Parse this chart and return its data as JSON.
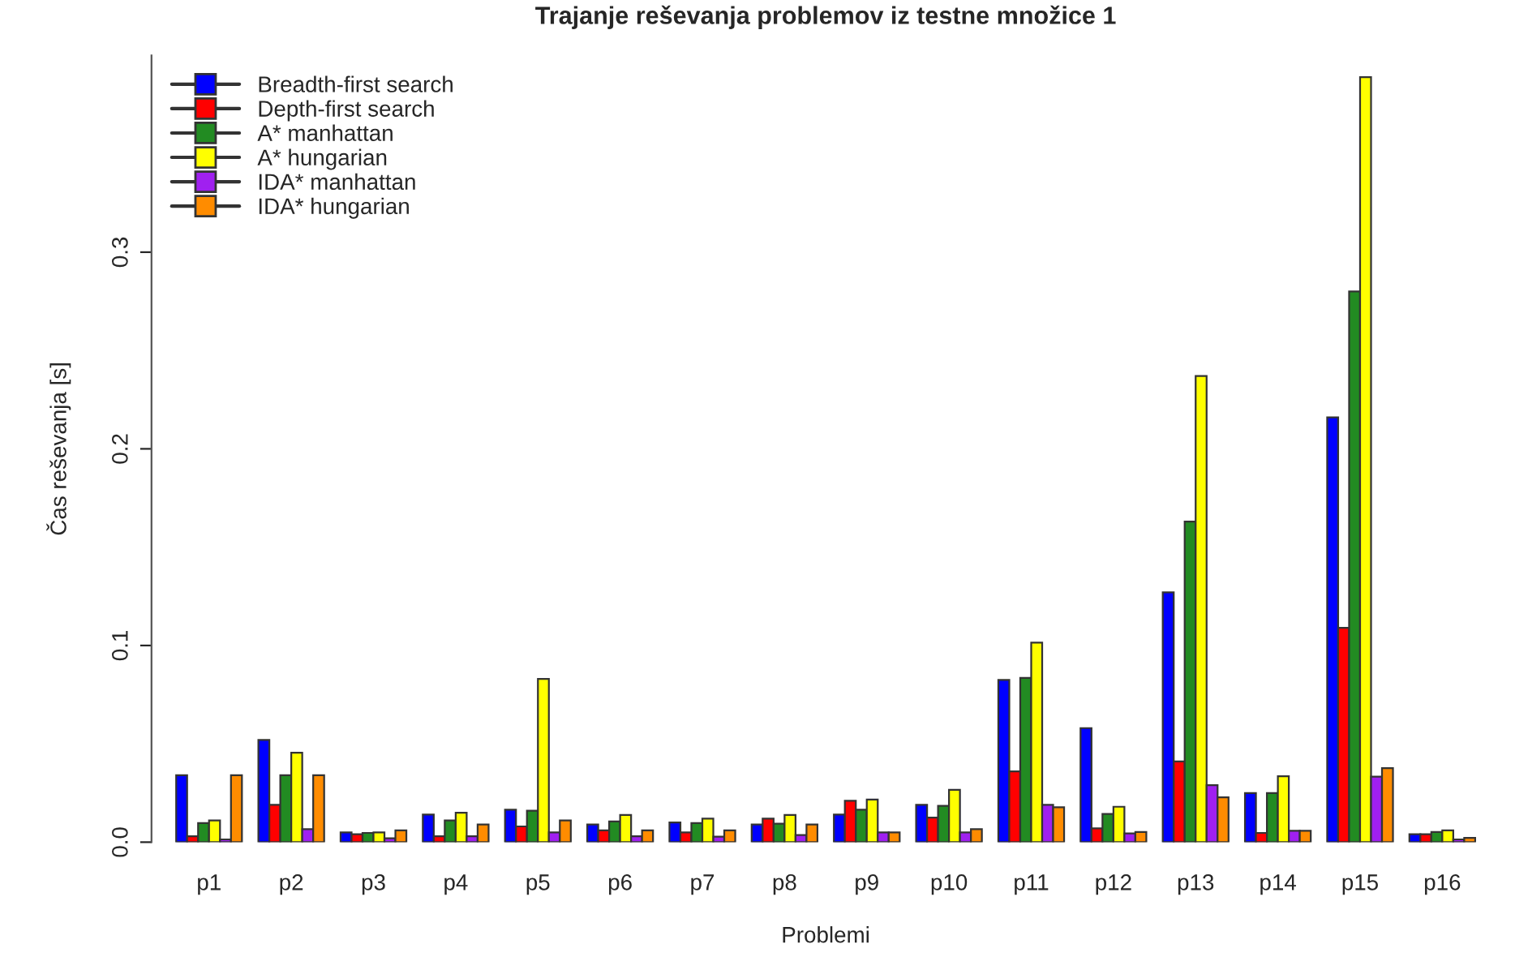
{
  "chart_data": {
    "type": "bar",
    "title": "Trajanje reševanja problemov iz testne množice 1",
    "xlabel": "Problemi",
    "ylabel": "Čas reševanja [s]",
    "categories": [
      "p1",
      "p2",
      "p3",
      "p4",
      "p5",
      "p6",
      "p7",
      "p8",
      "p9",
      "p10",
      "p11",
      "p12",
      "p13",
      "p14",
      "p15",
      "p16"
    ],
    "ylim": [
      0,
      0.4
    ],
    "yticks": [
      {
        "value": 0,
        "label": "0.0"
      },
      0.1,
      0.2,
      0.3
    ],
    "grid": false,
    "legend": "top left",
    "series": [
      {
        "name": "Breadth-first search",
        "color": "#0000ff",
        "values": [
          0.034,
          0.052,
          0.005,
          0.014,
          0.0165,
          0.009,
          0.01,
          0.009,
          0.014,
          0.019,
          0.0825,
          0.058,
          0.127,
          0.025,
          0.216,
          0.004
        ]
      },
      {
        "name": "Depth-first search",
        "color": "#ff0000",
        "values": [
          0.003,
          0.019,
          0.004,
          0.003,
          0.008,
          0.006,
          0.005,
          0.012,
          0.021,
          0.0125,
          0.036,
          0.007,
          0.041,
          0.0047,
          0.109,
          0.004
        ]
      },
      {
        "name": "A* manhattan",
        "color": "#228b22",
        "values": [
          0.0097,
          0.034,
          0.0047,
          0.011,
          0.016,
          0.0105,
          0.0097,
          0.0094,
          0.0165,
          0.0185,
          0.0835,
          0.0143,
          0.163,
          0.025,
          0.28,
          0.0052
        ]
      },
      {
        "name": "A* hungarian",
        "color": "#ffff00",
        "values": [
          0.011,
          0.0455,
          0.005,
          0.015,
          0.083,
          0.0138,
          0.012,
          0.0138,
          0.0217,
          0.0266,
          0.1015,
          0.018,
          0.237,
          0.0335,
          0.389,
          0.006
        ]
      },
      {
        "name": "IDA* manhattan",
        "color": "#a020f0",
        "values": [
          0.0014,
          0.0066,
          0.002,
          0.003,
          0.005,
          0.003,
          0.0028,
          0.0036,
          0.005,
          0.005,
          0.019,
          0.0044,
          0.029,
          0.0058,
          0.0333,
          0.0014
        ]
      },
      {
        "name": "IDA* hungarian",
        "color": "#ff8c00",
        "values": [
          0.034,
          0.034,
          0.006,
          0.009,
          0.011,
          0.006,
          0.006,
          0.009,
          0.005,
          0.0066,
          0.0177,
          0.0052,
          0.0228,
          0.0058,
          0.0376,
          0.0022
        ]
      }
    ]
  }
}
